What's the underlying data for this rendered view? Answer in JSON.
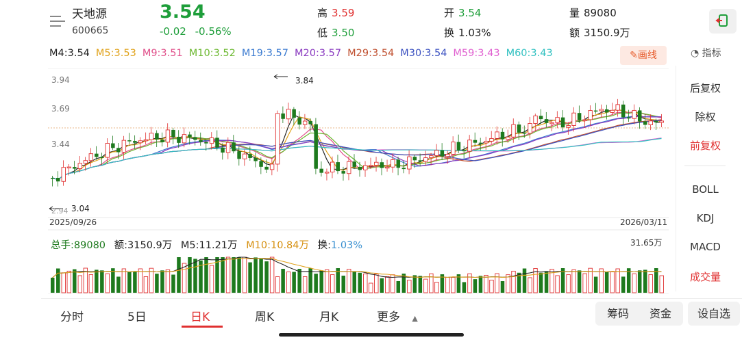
{
  "header": {
    "name": "天地源",
    "code": "600665",
    "price": "3.54",
    "change": "-0.02",
    "change_pct": "-0.56%",
    "high_label": "高",
    "high": "3.59",
    "low_label": "低",
    "low": "3.50",
    "open_label": "开",
    "open": "3.54",
    "turnover_label": "换",
    "turnover": "1.03%",
    "volume_label": "量",
    "volume": "89080",
    "amount_label": "额",
    "amount": "3150.9万"
  },
  "ma_row": [
    {
      "text": "M4:3.54",
      "color": "#222222"
    },
    {
      "text": "M5:3.53",
      "color": "#e0a21a"
    },
    {
      "text": "M9:3.51",
      "color": "#e0508a"
    },
    {
      "text": "M10:3.52",
      "color": "#6cb830"
    },
    {
      "text": "M19:3.57",
      "color": "#3a7ad0"
    },
    {
      "text": "M20:3.57",
      "color": "#8a3ac0"
    },
    {
      "text": "M29:3.54",
      "color": "#c05030"
    },
    {
      "text": "M30:3.54",
      "color": "#3a50c0"
    },
    {
      "text": "M59:3.43",
      "color": "#e060d0"
    },
    {
      "text": "M60:3.43",
      "color": "#30c0c0"
    }
  ],
  "toolbar": {
    "draw_label": "画线",
    "indicator_label": "指标"
  },
  "side_panel": {
    "items": [
      "后复权",
      "除权",
      "前复权",
      "BOLL",
      "KDJ",
      "MACD",
      "成交量"
    ]
  },
  "chart": {
    "y_labels": [
      "3.94",
      "3.69",
      "3.44"
    ],
    "max_annotation": "3.84",
    "min_annotation": "3.04",
    "bottom_left_tick": "2.94",
    "date_start": "2025/09/26",
    "date_end": "2026/03/11"
  },
  "volume": {
    "total_label": "总手:",
    "total": "89080",
    "amount_label": "额:",
    "amount": "3150.9万",
    "m5_label": "M5:",
    "m5": "11.21万",
    "m10_label": "M10:",
    "m10": "10.84万",
    "turn_label": "换:",
    "turn": "1.03%",
    "max_label": "31.65万"
  },
  "tabs": [
    "分时",
    "5日",
    "日K",
    "周K",
    "月K",
    "更多"
  ],
  "active_tab": "日K",
  "bottom_buttons": [
    "筹码",
    "资金",
    "设自选"
  ],
  "colors": {
    "up": "#e03030",
    "down": "#1e7a1e",
    "accent": "#e03030"
  }
}
